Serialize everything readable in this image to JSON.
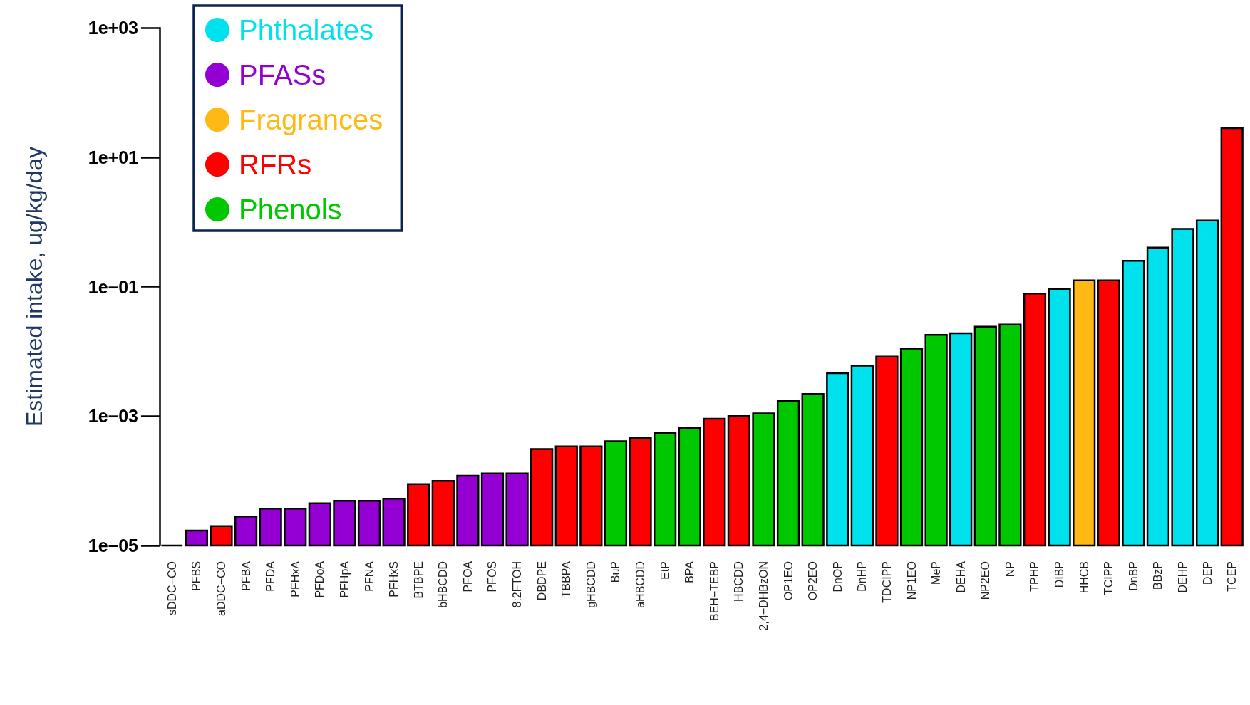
{
  "chart_data": {
    "type": "bar",
    "ylabel": "Estimated intake, ug/kg/day",
    "log": true,
    "legend": "top left",
    "categories": [
      "sDDC−CO",
      "PFBS",
      "aDDC−CO",
      "PFBA",
      "PFDA",
      "PFHxA",
      "PFDoA",
      "PFHpA",
      "PFNA",
      "PFHxS",
      "BTBPE",
      "bHBCDD",
      "PFOA",
      "PFOS",
      "8:2FTOH",
      "DBDPE",
      "TBBPA",
      "gHBCDD",
      "BuP",
      "aHBCDD",
      "EtP",
      "BPA",
      "BEH−TEBP",
      "HBCDD",
      "2,4−DHBzON",
      "OP1EO",
      "OP2EO",
      "DnOP",
      "DnHP",
      "TDCIPP",
      "NP1EO",
      "MeP",
      "DEHA",
      "NP2EO",
      "NP",
      "TPHP",
      "DIBP",
      "HHCB",
      "TCIPP",
      "DnBP",
      "BBzP",
      "DEHP",
      "DEP",
      "TCEP"
    ],
    "ylim": [
      1e-05,
      1000
    ],
    "yticks": [
      {
        "value": 1e-05,
        "label": "1e−05"
      },
      {
        "value": 0.001,
        "label": "1e−03"
      },
      {
        "value": 0.1,
        "label": "1e−01"
      },
      {
        "value": 10,
        "label": "1e+01"
      },
      {
        "value": 1000,
        "label": "1e+03"
      }
    ],
    "series": [
      {
        "name": "Phthalates",
        "color": "#00e1ee",
        "values": [
          null,
          null,
          null,
          null,
          null,
          null,
          null,
          null,
          null,
          null,
          null,
          null,
          null,
          null,
          null,
          null,
          null,
          null,
          null,
          null,
          null,
          null,
          null,
          null,
          null,
          null,
          null,
          0.0046,
          0.006,
          null,
          null,
          null,
          0.019,
          null,
          null,
          null,
          0.092,
          null,
          null,
          0.25,
          0.4,
          0.78,
          1.05,
          null
        ]
      },
      {
        "name": "PFASs",
        "color": "#9400d3",
        "values": [
          null,
          1.7e-05,
          null,
          2.8e-05,
          3.7e-05,
          3.7e-05,
          4.5e-05,
          4.9e-05,
          4.9e-05,
          5.3e-05,
          null,
          null,
          0.00012,
          0.00013,
          0.00013,
          null,
          null,
          null,
          null,
          null,
          null,
          null,
          null,
          null,
          null,
          null,
          null,
          null,
          null,
          null,
          null,
          null,
          null,
          null,
          null,
          null,
          null,
          null,
          null,
          null,
          null,
          null,
          null,
          null
        ]
      },
      {
        "name": "Fragrances",
        "color": "#ffb914",
        "values": [
          null,
          null,
          null,
          null,
          null,
          null,
          null,
          null,
          null,
          null,
          null,
          null,
          null,
          null,
          null,
          null,
          null,
          null,
          null,
          null,
          null,
          null,
          null,
          null,
          null,
          null,
          null,
          null,
          null,
          null,
          null,
          null,
          null,
          null,
          null,
          null,
          null,
          0.125,
          null,
          null,
          null,
          null,
          null,
          null
        ]
      },
      {
        "name": "RFRs",
        "color": "#ff0000",
        "values": [
          null,
          null,
          2e-05,
          null,
          null,
          null,
          null,
          null,
          null,
          null,
          8.9e-05,
          0.0001,
          null,
          null,
          null,
          0.00031,
          0.00034,
          0.00034,
          null,
          0.00046,
          null,
          null,
          0.00091,
          0.001,
          null,
          null,
          null,
          null,
          null,
          0.0083,
          null,
          null,
          null,
          null,
          null,
          0.078,
          null,
          null,
          0.125,
          null,
          null,
          null,
          null,
          28
        ]
      },
      {
        "name": "Phenols",
        "color": "#00c800",
        "values": [
          null,
          null,
          null,
          null,
          null,
          null,
          null,
          null,
          null,
          null,
          null,
          null,
          null,
          null,
          null,
          null,
          null,
          null,
          0.00041,
          null,
          0.00055,
          0.00066,
          null,
          null,
          0.0011,
          0.0017,
          0.0022,
          null,
          null,
          null,
          0.011,
          0.018,
          null,
          0.024,
          0.026,
          null,
          null,
          null,
          null,
          null,
          null,
          null,
          null,
          null
        ]
      },
      {
        "color": "#000000",
        "values": [
          1e-05,
          null,
          null,
          null,
          null,
          null,
          null,
          null,
          null,
          null,
          null,
          null,
          null,
          null,
          null,
          null,
          null,
          null,
          null,
          null,
          null,
          null,
          null,
          null,
          null,
          null,
          null,
          null,
          null,
          null,
          null,
          null,
          null,
          null,
          null,
          null,
          null,
          null,
          null,
          null,
          null,
          null,
          null,
          null
        ]
      }
    ]
  }
}
